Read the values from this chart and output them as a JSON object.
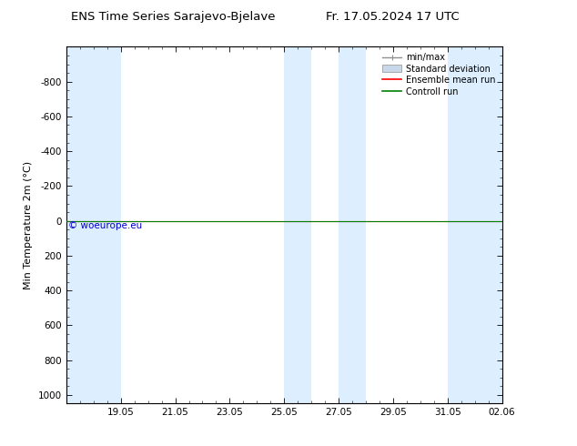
{
  "title": "ENS Time Series Sarajevo-Bjelave",
  "title_right": "Fr. 17.05.2024 17 UTC",
  "ylabel": "Min Temperature 2m (°C)",
  "ylim_top": -1000,
  "ylim_bottom": 1050,
  "yticks": [
    -800,
    -600,
    -400,
    -200,
    0,
    200,
    400,
    600,
    800,
    1000
  ],
  "x_min": 0,
  "x_max": 16,
  "xtick_labels": [
    "19.05",
    "21.05",
    "23.05",
    "25.05",
    "27.05",
    "29.05",
    "31.05",
    "02.06"
  ],
  "xtick_positions": [
    2,
    4,
    6,
    8,
    10,
    12,
    14,
    16
  ],
  "shaded_bands": [
    [
      0,
      2
    ],
    [
      8,
      9
    ],
    [
      10,
      11
    ],
    [
      14,
      16
    ]
  ],
  "shade_color": "#ddeeff",
  "watermark": "© woeurope.eu",
  "watermark_color": "#0000cc",
  "control_run_color": "#008000",
  "ensemble_mean_color": "#ff0000",
  "minmax_color": "#909090",
  "std_fill_color": "#c8d8e8",
  "background_color": "#ffffff"
}
